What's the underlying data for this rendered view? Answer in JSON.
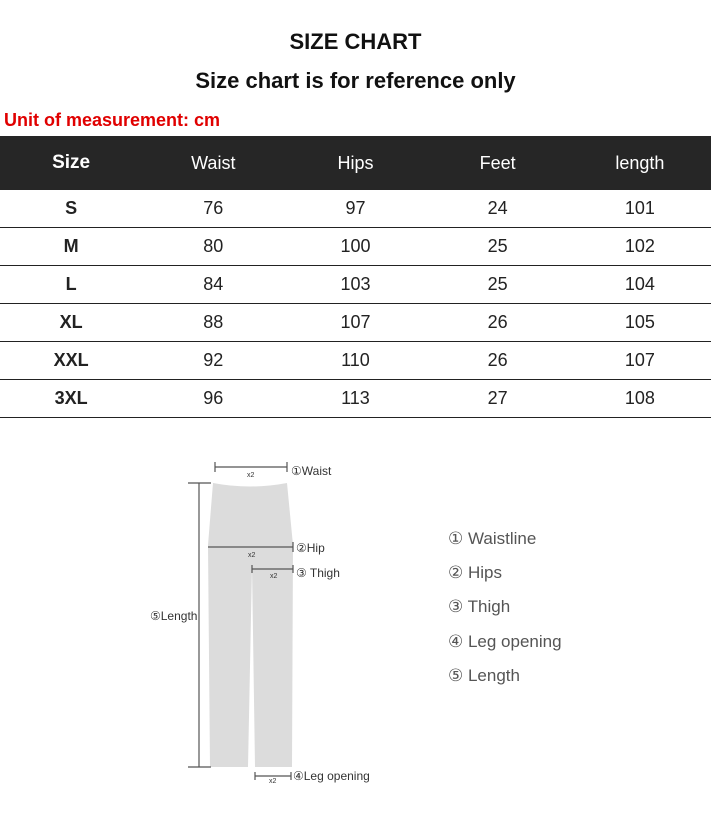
{
  "title": "SIZE CHART",
  "subtitle": "Size chart is for reference only",
  "unit_note": "Unit of measurement: cm",
  "colors": {
    "header_bg": "#262626",
    "unit_note": "#e00000",
    "garment": "#dcdcdc"
  },
  "table": {
    "headers": [
      "Size",
      "Waist",
      "Hips",
      "Feet",
      "length"
    ],
    "rows": [
      [
        "S",
        "76",
        "97",
        "24",
        "101"
      ],
      [
        "M",
        "80",
        "100",
        "25",
        "102"
      ],
      [
        "L",
        "84",
        "103",
        "25",
        "104"
      ],
      [
        "XL",
        "88",
        "107",
        "26",
        "105"
      ],
      [
        "XXL",
        "92",
        "110",
        "26",
        "107"
      ],
      [
        "3XL",
        "96",
        "113",
        "27",
        "108"
      ]
    ]
  },
  "diagram": {
    "multiplier": "x2",
    "labels": {
      "waist": "①Waist",
      "hip": "②Hip",
      "thigh": "③ Thigh",
      "leg_opening": "④Leg opening",
      "length": "⑤Length"
    },
    "legend": [
      "① Waistline",
      "② Hips",
      "③ Thigh",
      "④ Leg opening",
      "⑤ Length"
    ]
  }
}
